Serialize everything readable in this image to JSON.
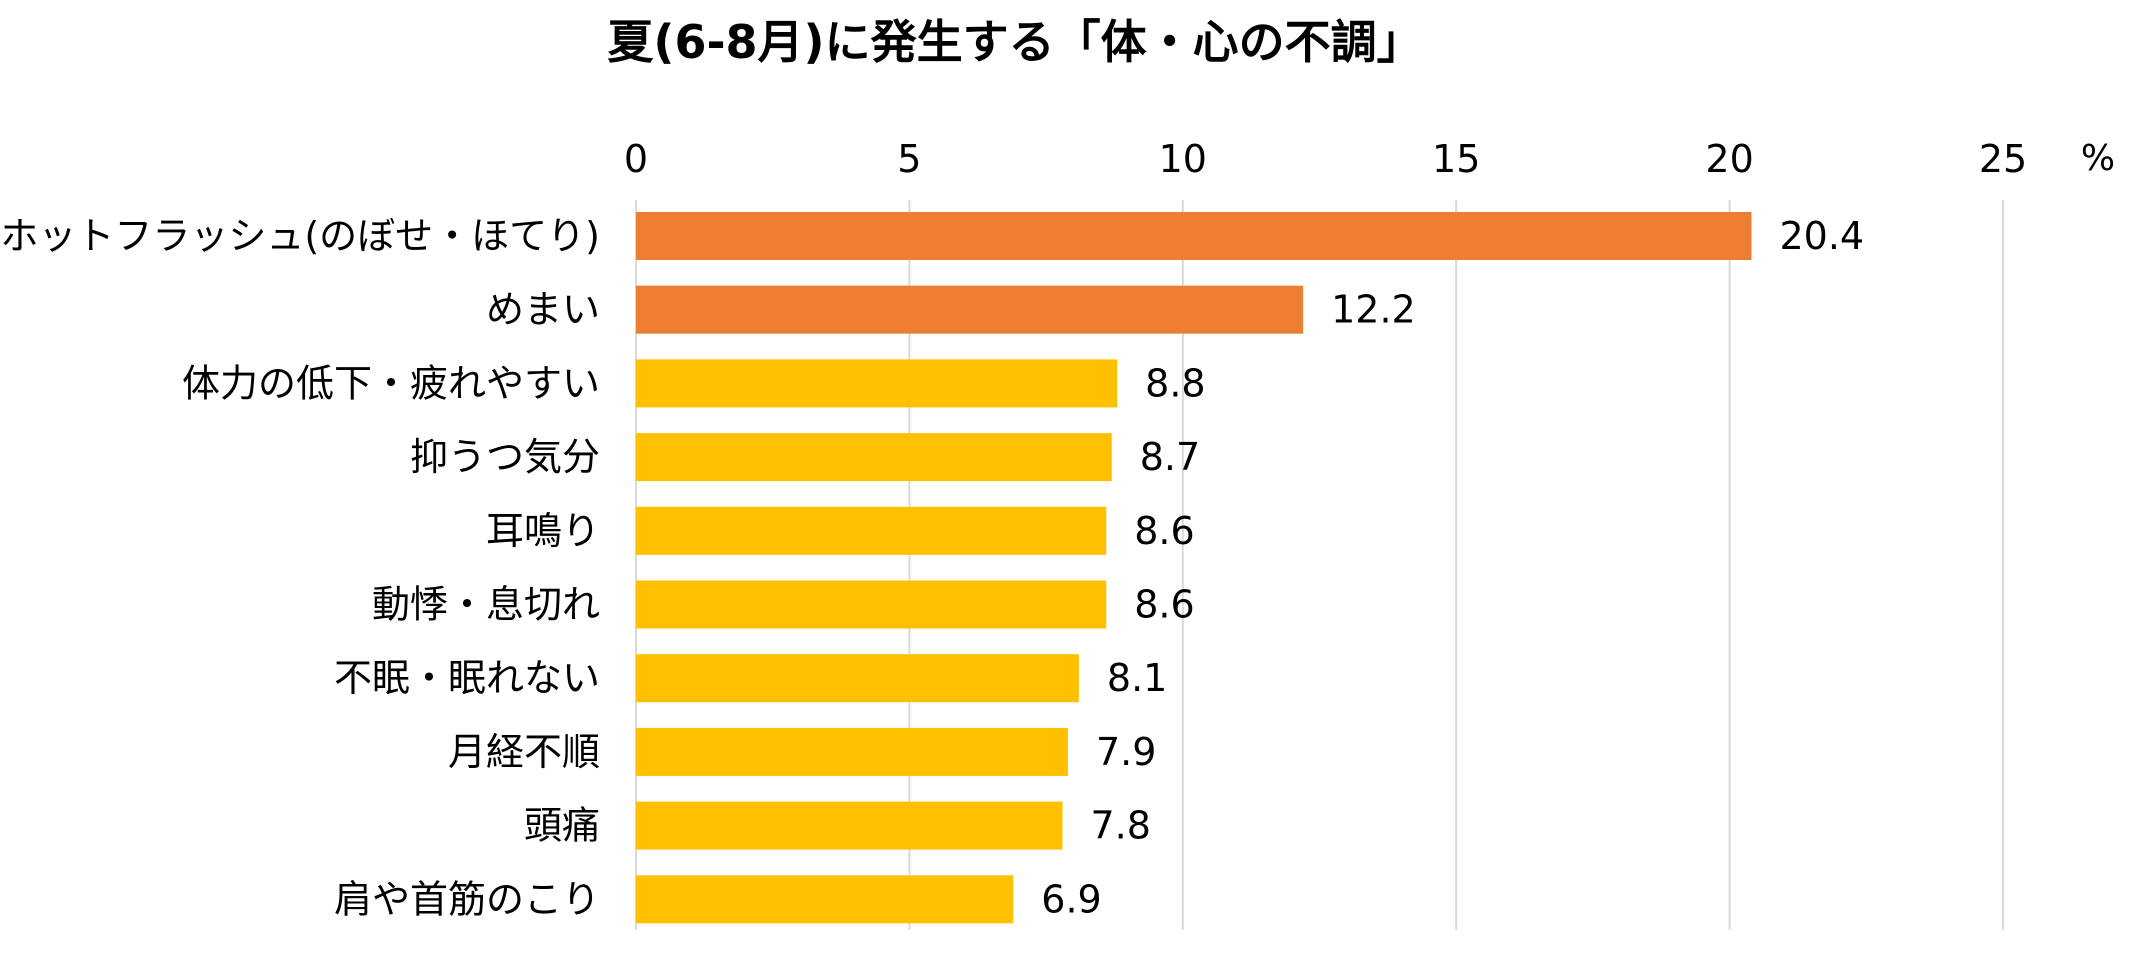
{
  "chart_data": {
    "type": "bar",
    "orientation": "horizontal",
    "title": "夏(6-8月)に発生する「体・心の不調」",
    "unit_label": "%",
    "xlim": [
      0,
      25
    ],
    "x_ticks": [
      0,
      5,
      10,
      15,
      20,
      25
    ],
    "grid": true,
    "categories": [
      "ホットフラッシュ(のぼせ・ほてり)",
      "めまい",
      "体力の低下・疲れやすい",
      "抑うつ気分",
      "耳鳴り",
      "動悸・息切れ",
      "不眠・眠れない",
      "月経不順",
      "頭痛",
      "肩や首筋のこり"
    ],
    "values": [
      20.4,
      12.2,
      8.8,
      8.7,
      8.6,
      8.6,
      8.1,
      7.9,
      7.8,
      6.9
    ],
    "value_labels": [
      "20.4",
      "12.2",
      "8.8",
      "8.7",
      "8.6",
      "8.6",
      "8.1",
      "7.9",
      "7.8",
      "6.9"
    ],
    "highlight_count": 2,
    "colors": {
      "highlight": "#ED7D31",
      "default": "#FFC000",
      "grid": "#D9D9D9"
    }
  }
}
